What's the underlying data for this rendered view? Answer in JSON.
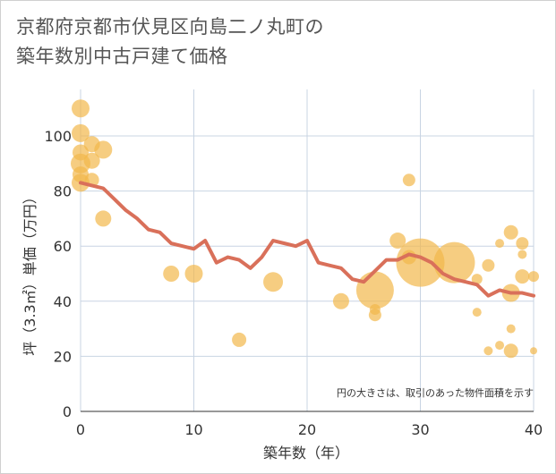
{
  "title_line1": "京都府京都市伏見区向島二ノ丸町の",
  "title_line2": "築年数別中古戸建て価格",
  "chart_data": {
    "type": "scatter",
    "title": "京都府京都市伏見区向島二ノ丸町の築年数別中古戸建て価格",
    "xlabel": "築年数（年）",
    "ylabel": "坪（3.3㎡）単価（万円）",
    "xlim": [
      0,
      40
    ],
    "ylim": [
      0,
      115
    ],
    "xticks": [
      0,
      10,
      20,
      30,
      40
    ],
    "yticks": [
      0,
      20,
      40,
      60,
      80,
      100
    ],
    "grid": true,
    "note": "円の大きさは、取引のあった物件面積を示す",
    "colors": {
      "bubble": "#f2b84b",
      "line": "#d9705a",
      "grid": "#c8d4e3"
    },
    "bubbles": [
      {
        "x": 0,
        "y": 110,
        "s": 10
      },
      {
        "x": 0,
        "y": 101,
        "s": 10
      },
      {
        "x": 0,
        "y": 94,
        "s": 9
      },
      {
        "x": 0,
        "y": 90,
        "s": 11
      },
      {
        "x": 0,
        "y": 86,
        "s": 9
      },
      {
        "x": 0,
        "y": 83,
        "s": 10
      },
      {
        "x": 1,
        "y": 97,
        "s": 9
      },
      {
        "x": 1,
        "y": 91,
        "s": 9
      },
      {
        "x": 1,
        "y": 84,
        "s": 8
      },
      {
        "x": 2,
        "y": 95,
        "s": 10
      },
      {
        "x": 2,
        "y": 70,
        "s": 9
      },
      {
        "x": 8,
        "y": 50,
        "s": 9
      },
      {
        "x": 10,
        "y": 50,
        "s": 10
      },
      {
        "x": 14,
        "y": 26,
        "s": 8
      },
      {
        "x": 17,
        "y": 47,
        "s": 11
      },
      {
        "x": 23,
        "y": 40,
        "s": 9
      },
      {
        "x": 26,
        "y": 44,
        "s": 21
      },
      {
        "x": 26,
        "y": 37,
        "s": 6
      },
      {
        "x": 26,
        "y": 35,
        "s": 7
      },
      {
        "x": 28,
        "y": 62,
        "s": 9
      },
      {
        "x": 29,
        "y": 84,
        "s": 7
      },
      {
        "x": 29,
        "y": 56,
        "s": 8
      },
      {
        "x": 30,
        "y": 54,
        "s": 27
      },
      {
        "x": 33,
        "y": 54,
        "s": 23
      },
      {
        "x": 35,
        "y": 48,
        "s": 6
      },
      {
        "x": 35,
        "y": 36,
        "s": 5
      },
      {
        "x": 36,
        "y": 53,
        "s": 7
      },
      {
        "x": 36,
        "y": 22,
        "s": 5
      },
      {
        "x": 37,
        "y": 61,
        "s": 5
      },
      {
        "x": 37,
        "y": 24,
        "s": 5
      },
      {
        "x": 38,
        "y": 65,
        "s": 8
      },
      {
        "x": 38,
        "y": 43,
        "s": 10
      },
      {
        "x": 38,
        "y": 30,
        "s": 5
      },
      {
        "x": 38,
        "y": 22,
        "s": 8
      },
      {
        "x": 39,
        "y": 61,
        "s": 7
      },
      {
        "x": 39,
        "y": 57,
        "s": 5
      },
      {
        "x": 39,
        "y": 49,
        "s": 8
      },
      {
        "x": 40,
        "y": 49,
        "s": 6
      },
      {
        "x": 40,
        "y": 22,
        "s": 4
      }
    ],
    "line": {
      "x": [
        0,
        1,
        2,
        3,
        4,
        5,
        6,
        7,
        8,
        9,
        10,
        11,
        12,
        13,
        14,
        15,
        16,
        17,
        18,
        19,
        20,
        21,
        22,
        23,
        24,
        25,
        26,
        27,
        28,
        29,
        30,
        31,
        32,
        33,
        34,
        35,
        36,
        37,
        38,
        39,
        40
      ],
      "y": [
        83,
        82,
        81,
        77,
        73,
        70,
        66,
        65,
        61,
        60,
        59,
        62,
        54,
        56,
        55,
        52,
        56,
        62,
        61,
        60,
        62,
        54,
        53,
        52,
        48,
        47,
        51,
        55,
        55,
        57,
        56,
        54,
        50,
        48,
        47,
        46,
        42,
        44,
        43,
        43,
        42
      ]
    }
  }
}
